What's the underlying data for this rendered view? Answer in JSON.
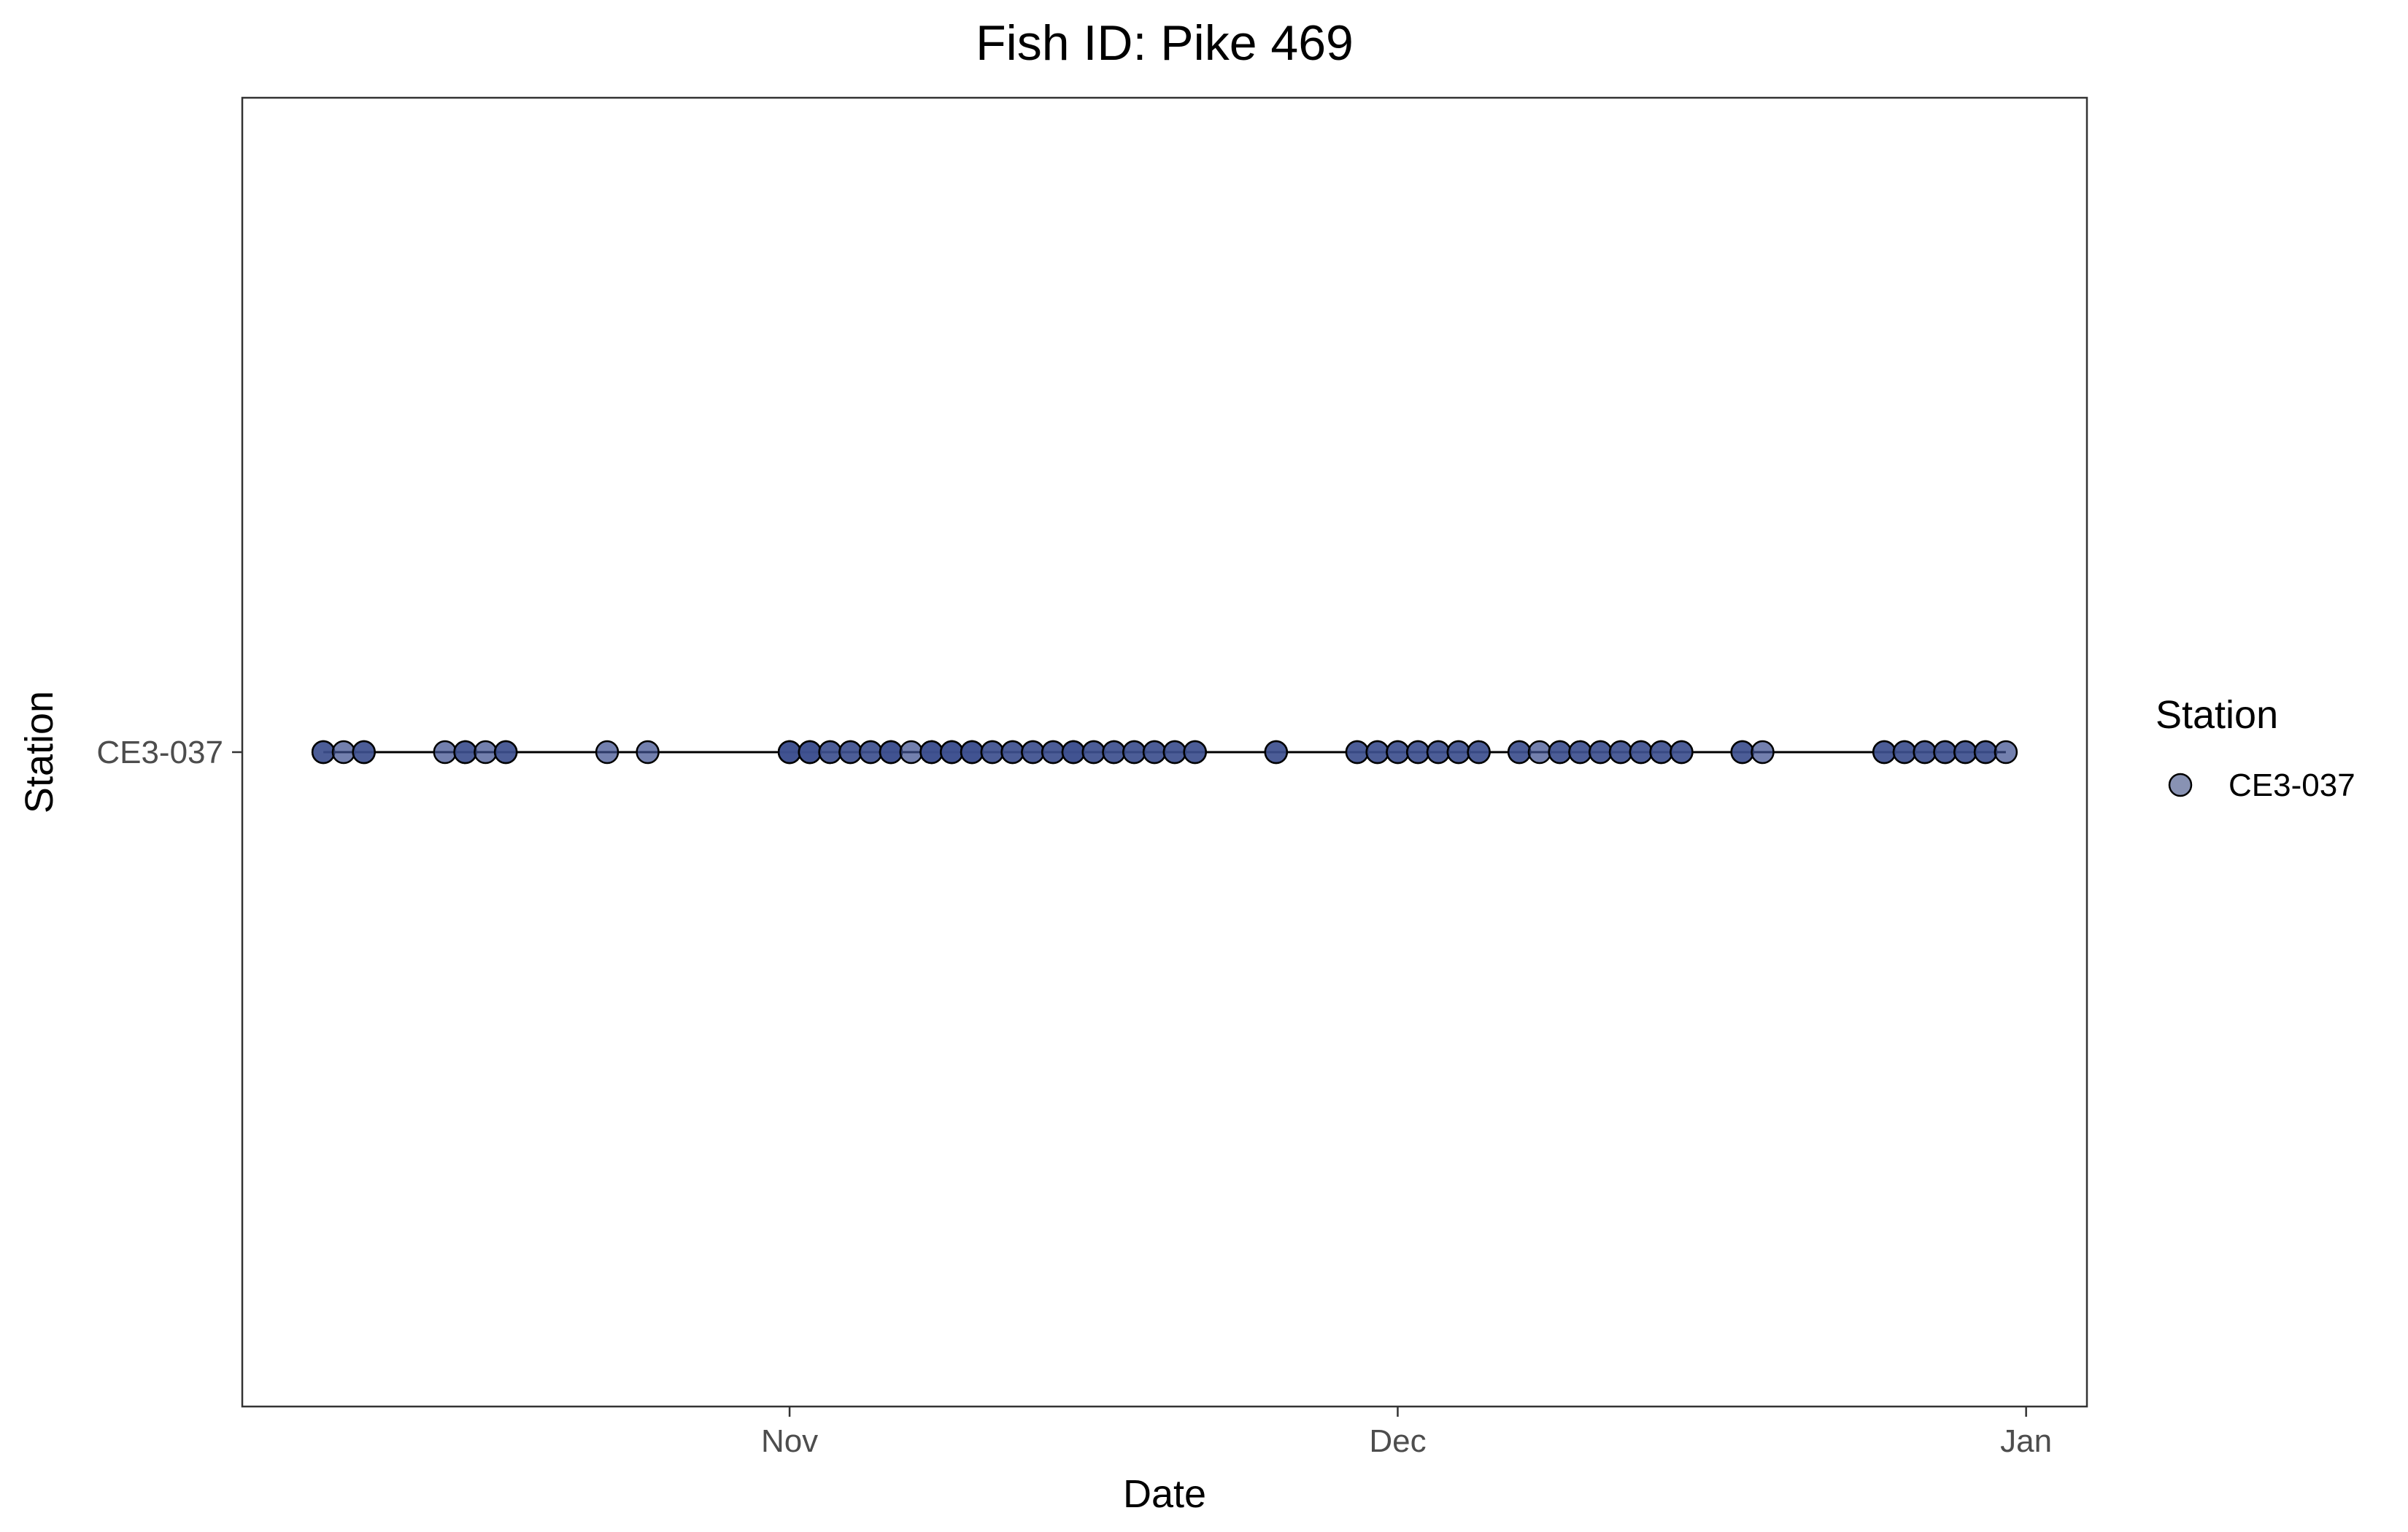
{
  "chart_data": {
    "type": "scatter",
    "title": "Fish ID: Pike 469",
    "xlabel": "Date",
    "ylabel": "Station",
    "x_ticks": [
      "Nov",
      "Dec",
      "Jan"
    ],
    "x_tick_dates": [
      "2020-11-01",
      "2020-12-01",
      "2021-01-01"
    ],
    "xlim": [
      "2020-10-05",
      "2021-01-04"
    ],
    "y_categories": [
      "CE3-037"
    ],
    "legend": {
      "title": "Station",
      "position": "right",
      "entries": [
        "CE3-037"
      ]
    },
    "colors": {
      "point_fill": "#3d4f8f",
      "point_stroke": "#000000",
      "line": "#000000",
      "legend_fill": "#8892b3"
    },
    "grid": false,
    "series": [
      {
        "name": "CE3-037",
        "y": "CE3-037",
        "x": [
          "2020-10-09",
          "2020-10-09",
          "2020-10-10",
          "2020-10-11",
          "2020-10-11",
          "2020-10-15",
          "2020-10-16",
          "2020-10-16",
          "2020-10-17",
          "2020-10-18",
          "2020-10-18",
          "2020-10-23",
          "2020-10-25",
          "2020-11-01",
          "2020-11-01",
          "2020-11-01",
          "2020-11-02",
          "2020-11-02",
          "2020-11-02",
          "2020-11-03",
          "2020-11-03",
          "2020-11-04",
          "2020-11-04",
          "2020-11-05",
          "2020-11-05",
          "2020-11-06",
          "2020-11-06",
          "2020-11-06",
          "2020-11-07",
          "2020-11-08",
          "2020-11-08",
          "2020-11-08",
          "2020-11-09",
          "2020-11-09",
          "2020-11-09",
          "2020-11-10",
          "2020-11-10",
          "2020-11-10",
          "2020-11-11",
          "2020-11-11",
          "2020-11-12",
          "2020-11-12",
          "2020-11-13",
          "2020-11-13",
          "2020-11-14",
          "2020-11-14",
          "2020-11-15",
          "2020-11-15",
          "2020-11-15",
          "2020-11-16",
          "2020-11-16",
          "2020-11-17",
          "2020-11-17",
          "2020-11-18",
          "2020-11-18",
          "2020-11-19",
          "2020-11-19",
          "2020-11-20",
          "2020-11-20",
          "2020-11-21",
          "2020-11-21",
          "2020-11-25",
          "2020-11-25",
          "2020-11-29",
          "2020-11-29",
          "2020-11-30",
          "2020-11-30",
          "2020-12-01",
          "2020-12-01",
          "2020-12-02",
          "2020-12-02",
          "2020-12-03",
          "2020-12-03",
          "2020-12-04",
          "2020-12-04",
          "2020-12-05",
          "2020-12-05",
          "2020-12-07",
          "2020-12-07",
          "2020-12-08",
          "2020-12-09",
          "2020-12-09",
          "2020-12-10",
          "2020-12-10",
          "2020-12-11",
          "2020-12-11",
          "2020-12-12",
          "2020-12-12",
          "2020-12-13",
          "2020-12-13",
          "2020-12-14",
          "2020-12-14",
          "2020-12-15",
          "2020-12-15",
          "2020-12-18",
          "2020-12-18",
          "2020-12-19",
          "2020-12-25",
          "2020-12-25",
          "2020-12-26",
          "2020-12-26",
          "2020-12-27",
          "2020-12-27",
          "2020-12-28",
          "2020-12-28",
          "2020-12-29",
          "2020-12-29",
          "2020-12-30",
          "2020-12-30",
          "2020-12-31"
        ]
      }
    ]
  }
}
